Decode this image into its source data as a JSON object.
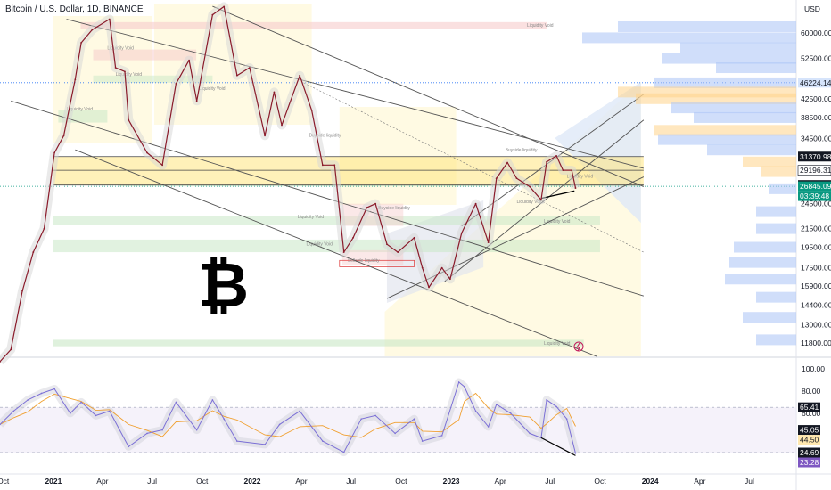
{
  "title": "Bitcoin / U.S. Dollar, 1D, BINANCE",
  "currency": "USD",
  "colors": {
    "price_line": "#8a1a2a",
    "rsi_line": "#7b6fd6",
    "rsi_ma": "#f0a030",
    "liquidity_green": "#c9e8c6",
    "liquidity_red": "#f6cccc",
    "liquidity_yellow": "#fff5c2",
    "profile_blue": "#a9c2f5",
    "profile_orange": "#ffd48a",
    "accent_teal": "#089981",
    "accent_purple": "#7e57c2"
  },
  "chart_data": [
    {
      "type": "line",
      "name": "price",
      "x_labels": [
        "Oct",
        "2021",
        "Apr",
        "Jul",
        "Oct",
        "2022",
        "Apr",
        "Jul",
        "Oct",
        "2023",
        "Apr",
        "Jul",
        "Oct",
        "2024",
        "Apr",
        "Jul"
      ],
      "y_ticks": [
        60000,
        52500,
        46224.14,
        42500,
        38500,
        34500,
        31370.98,
        29196.31,
        27021.63,
        26845.09,
        24500,
        21500,
        19500,
        17500,
        15900,
        14400,
        13000,
        11800
      ],
      "y_scale": "log",
      "x": [
        "2020-09-25",
        "2020-10-15",
        "2020-11-05",
        "2020-11-25",
        "2020-12-15",
        "2021-01-03",
        "2021-01-20",
        "2021-02-10",
        "2021-02-21",
        "2021-03-13",
        "2021-04-14",
        "2021-04-25",
        "2021-05-12",
        "2021-05-19",
        "2021-06-22",
        "2021-07-20",
        "2021-08-14",
        "2021-09-07",
        "2021-09-21",
        "2021-10-20",
        "2021-11-10",
        "2021-12-04",
        "2021-12-27",
        "2022-01-24",
        "2022-02-10",
        "2022-02-24",
        "2022-03-29",
        "2022-04-20",
        "2022-05-10",
        "2022-06-01",
        "2022-06-18",
        "2022-07-05",
        "2022-07-30",
        "2022-08-15",
        "2022-09-05",
        "2022-09-25",
        "2022-10-25",
        "2022-11-09",
        "2022-11-21",
        "2022-12-15",
        "2022-12-30",
        "2023-01-20",
        "2023-02-15",
        "2023-03-10",
        "2023-03-25",
        "2023-04-14",
        "2023-05-01",
        "2023-05-25",
        "2023-06-15",
        "2023-06-25",
        "2023-07-13",
        "2023-07-25",
        "2023-08-10",
        "2023-08-17"
      ],
      "y": [
        10700,
        11400,
        15500,
        19000,
        21500,
        32000,
        35000,
        47000,
        57000,
        61000,
        64500,
        50000,
        49000,
        38000,
        32000,
        30000,
        46000,
        52000,
        42000,
        66000,
        68900,
        48000,
        50000,
        35000,
        44000,
        37000,
        48000,
        40000,
        30000,
        30000,
        19000,
        20500,
        24000,
        24500,
        19800,
        19000,
        20500,
        17500,
        15800,
        17500,
        16500,
        21000,
        24500,
        20000,
        28000,
        30400,
        28000,
        26800,
        25000,
        30500,
        31500,
        29200,
        29200,
        26600
      ],
      "ylim": [
        10000,
        70000
      ]
    },
    {
      "type": "line",
      "name": "rsi",
      "y_ticks": [
        100,
        80,
        65.41,
        60,
        45.05,
        44.5,
        40,
        24.69,
        23.28
      ],
      "ylim": [
        20,
        100
      ],
      "x": [
        "2020-09-25",
        "2020-10-20",
        "2020-11-15",
        "2020-12-10",
        "2021-01-03",
        "2021-02-01",
        "2021-02-21",
        "2021-03-20",
        "2021-04-14",
        "2021-05-19",
        "2021-06-22",
        "2021-07-20",
        "2021-08-14",
        "2021-09-21",
        "2021-10-20",
        "2021-11-10",
        "2021-12-04",
        "2022-01-24",
        "2022-02-20",
        "2022-03-29",
        "2022-05-10",
        "2022-06-18",
        "2022-07-20",
        "2022-08-15",
        "2022-09-20",
        "2022-10-25",
        "2022-11-09",
        "2022-12-15",
        "2023-01-15",
        "2023-01-25",
        "2023-02-15",
        "2023-03-10",
        "2023-03-25",
        "2023-04-20",
        "2023-05-25",
        "2023-06-15",
        "2023-06-25",
        "2023-07-13",
        "2023-08-01",
        "2023-08-17"
      ],
      "y": [
        50,
        62,
        72,
        78,
        82,
        60,
        70,
        58,
        62,
        30,
        42,
        45,
        70,
        45,
        72,
        55,
        35,
        32,
        50,
        62,
        35,
        25,
        55,
        58,
        42,
        55,
        35,
        40,
        88,
        84,
        62,
        48,
        68,
        60,
        42,
        38,
        72,
        66,
        55,
        24
      ]
    }
  ],
  "labels": {
    "liquidity_void": "Liquidity Void",
    "buyside_liquidity": "Buyside liquidity",
    "sellside_liquidity": "Sellside liquidity",
    "price_badges": [
      "46224.14",
      "31370.98",
      "29196.31",
      "27021.63",
      "26845.09",
      "03:39:48"
    ],
    "rsi_badges": [
      "65.41",
      "45.05",
      "44.50",
      "24.69",
      "23.28"
    ]
  }
}
